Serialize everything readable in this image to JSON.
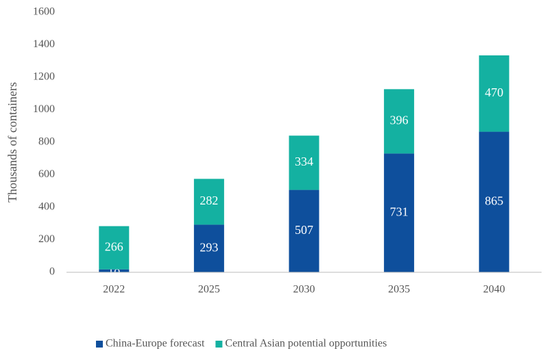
{
  "chart_data": {
    "type": "stacked_bar",
    "ylabel": "Thousands of containers",
    "categories": [
      "2022",
      "2025",
      "2030",
      "2035",
      "2040"
    ],
    "series": [
      {
        "name": "China-Europe forecast",
        "color": "#0e4f9c",
        "values": [
          18,
          293,
          507,
          731,
          865
        ]
      },
      {
        "name": "Central Asian potential opportunities",
        "color": "#14b1a1",
        "values": [
          266,
          282,
          334,
          396,
          470
        ]
      }
    ],
    "ylim": [
      0,
      1600
    ],
    "yticks": [
      0,
      200,
      400,
      600,
      800,
      1000,
      1200,
      1400,
      1600
    ],
    "grid": false,
    "legend": "bottom"
  }
}
